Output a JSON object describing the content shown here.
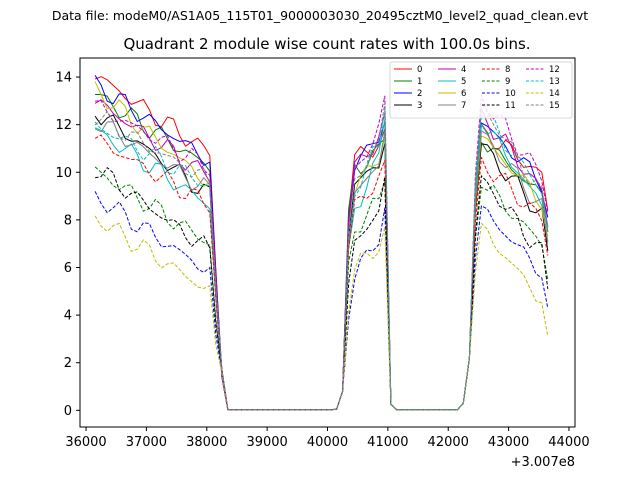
{
  "chart_data": {
    "type": "line",
    "suptitle": "Data file: modeM0/AS1A05_115T01_9000003030_20495cztM0_level2_quad_clean.evt",
    "title": "Quadrant 2 module wise count rates with 100.0s bins.",
    "xlabel": "",
    "ylabel": "",
    "x_offset_label": "+3.007e8",
    "xlim": [
      35900,
      44100
    ],
    "ylim": [
      -0.7,
      14.8
    ],
    "xticks": [
      "36000",
      "37000",
      "38000",
      "39000",
      "40000",
      "41000",
      "42000",
      "43000",
      "44000"
    ],
    "yticks": [
      "0",
      "2",
      "4",
      "6",
      "8",
      "10",
      "12",
      "14"
    ],
    "legend_position": "top-right",
    "segments": [
      {
        "start": 36150,
        "step": 100,
        "count": 20
      },
      {
        "start": 38150,
        "step": 100,
        "count": 21
      },
      {
        "start": 40250,
        "step": 100,
        "count": 7
      },
      {
        "start": 40950,
        "step": 100,
        "count": 15
      },
      {
        "start": 42450,
        "step": 100,
        "count": 13
      }
    ],
    "series": [
      {
        "name": "0",
        "color": "#ff0000",
        "dash": false,
        "levels": [
          14.1,
          10.8,
          10.4,
          11.8,
          9.9
        ]
      },
      {
        "name": "1",
        "color": "#008000",
        "dash": false,
        "levels": [
          13.3,
          10.2,
          10.0,
          11.4,
          9.0
        ]
      },
      {
        "name": "2",
        "color": "#0000ff",
        "dash": false,
        "levels": [
          13.7,
          10.5,
          10.2,
          12.1,
          9.6
        ]
      },
      {
        "name": "3",
        "color": "#000000",
        "dash": false,
        "levels": [
          12.6,
          9.0,
          9.2,
          11.2,
          8.2
        ]
      },
      {
        "name": "4",
        "color": "#bf00bf",
        "dash": false,
        "levels": [
          13.0,
          9.8,
          9.9,
          12.5,
          9.2
        ]
      },
      {
        "name": "5",
        "color": "#00bfbf",
        "dash": false,
        "levels": [
          11.8,
          8.6,
          8.0,
          12.2,
          8.6
        ]
      },
      {
        "name": "6",
        "color": "#bfbf00",
        "dash": false,
        "levels": [
          13.5,
          9.5,
          9.1,
          11.5,
          8.8
        ]
      },
      {
        "name": "7",
        "color": "#808080",
        "dash": false,
        "levels": [
          12.2,
          9.2,
          8.6,
          11.7,
          8.5
        ]
      },
      {
        "name": "8",
        "color": "#ff0000",
        "dash": true,
        "levels": [
          11.4,
          8.6,
          8.4,
          10.5,
          8.0
        ]
      },
      {
        "name": "9",
        "color": "#008000",
        "dash": true,
        "levels": [
          10.1,
          7.0,
          7.4,
          9.6,
          7.0
        ]
      },
      {
        "name": "10",
        "color": "#0000ff",
        "dash": true,
        "levels": [
          9.0,
          5.8,
          5.3,
          8.5,
          5.8
        ]
      },
      {
        "name": "11",
        "color": "#000000",
        "dash": true,
        "levels": [
          10.2,
          6.7,
          6.5,
          9.8,
          6.6
        ]
      },
      {
        "name": "12",
        "color": "#bf00bf",
        "dash": true,
        "levels": [
          12.8,
          10.2,
          9.6,
          13.2,
          9.8
        ]
      },
      {
        "name": "13",
        "color": "#00bfbf",
        "dash": true,
        "levels": [
          12.0,
          9.4,
          8.8,
          12.6,
          9.2
        ]
      },
      {
        "name": "14",
        "color": "#bfbf00",
        "dash": true,
        "levels": [
          8.1,
          5.0,
          5.7,
          7.7,
          4.6
        ]
      },
      {
        "name": "15",
        "color": "#808080",
        "dash": true,
        "levels": [
          12.4,
          9.6,
          9.0,
          12.9,
          9.0
        ]
      }
    ]
  }
}
